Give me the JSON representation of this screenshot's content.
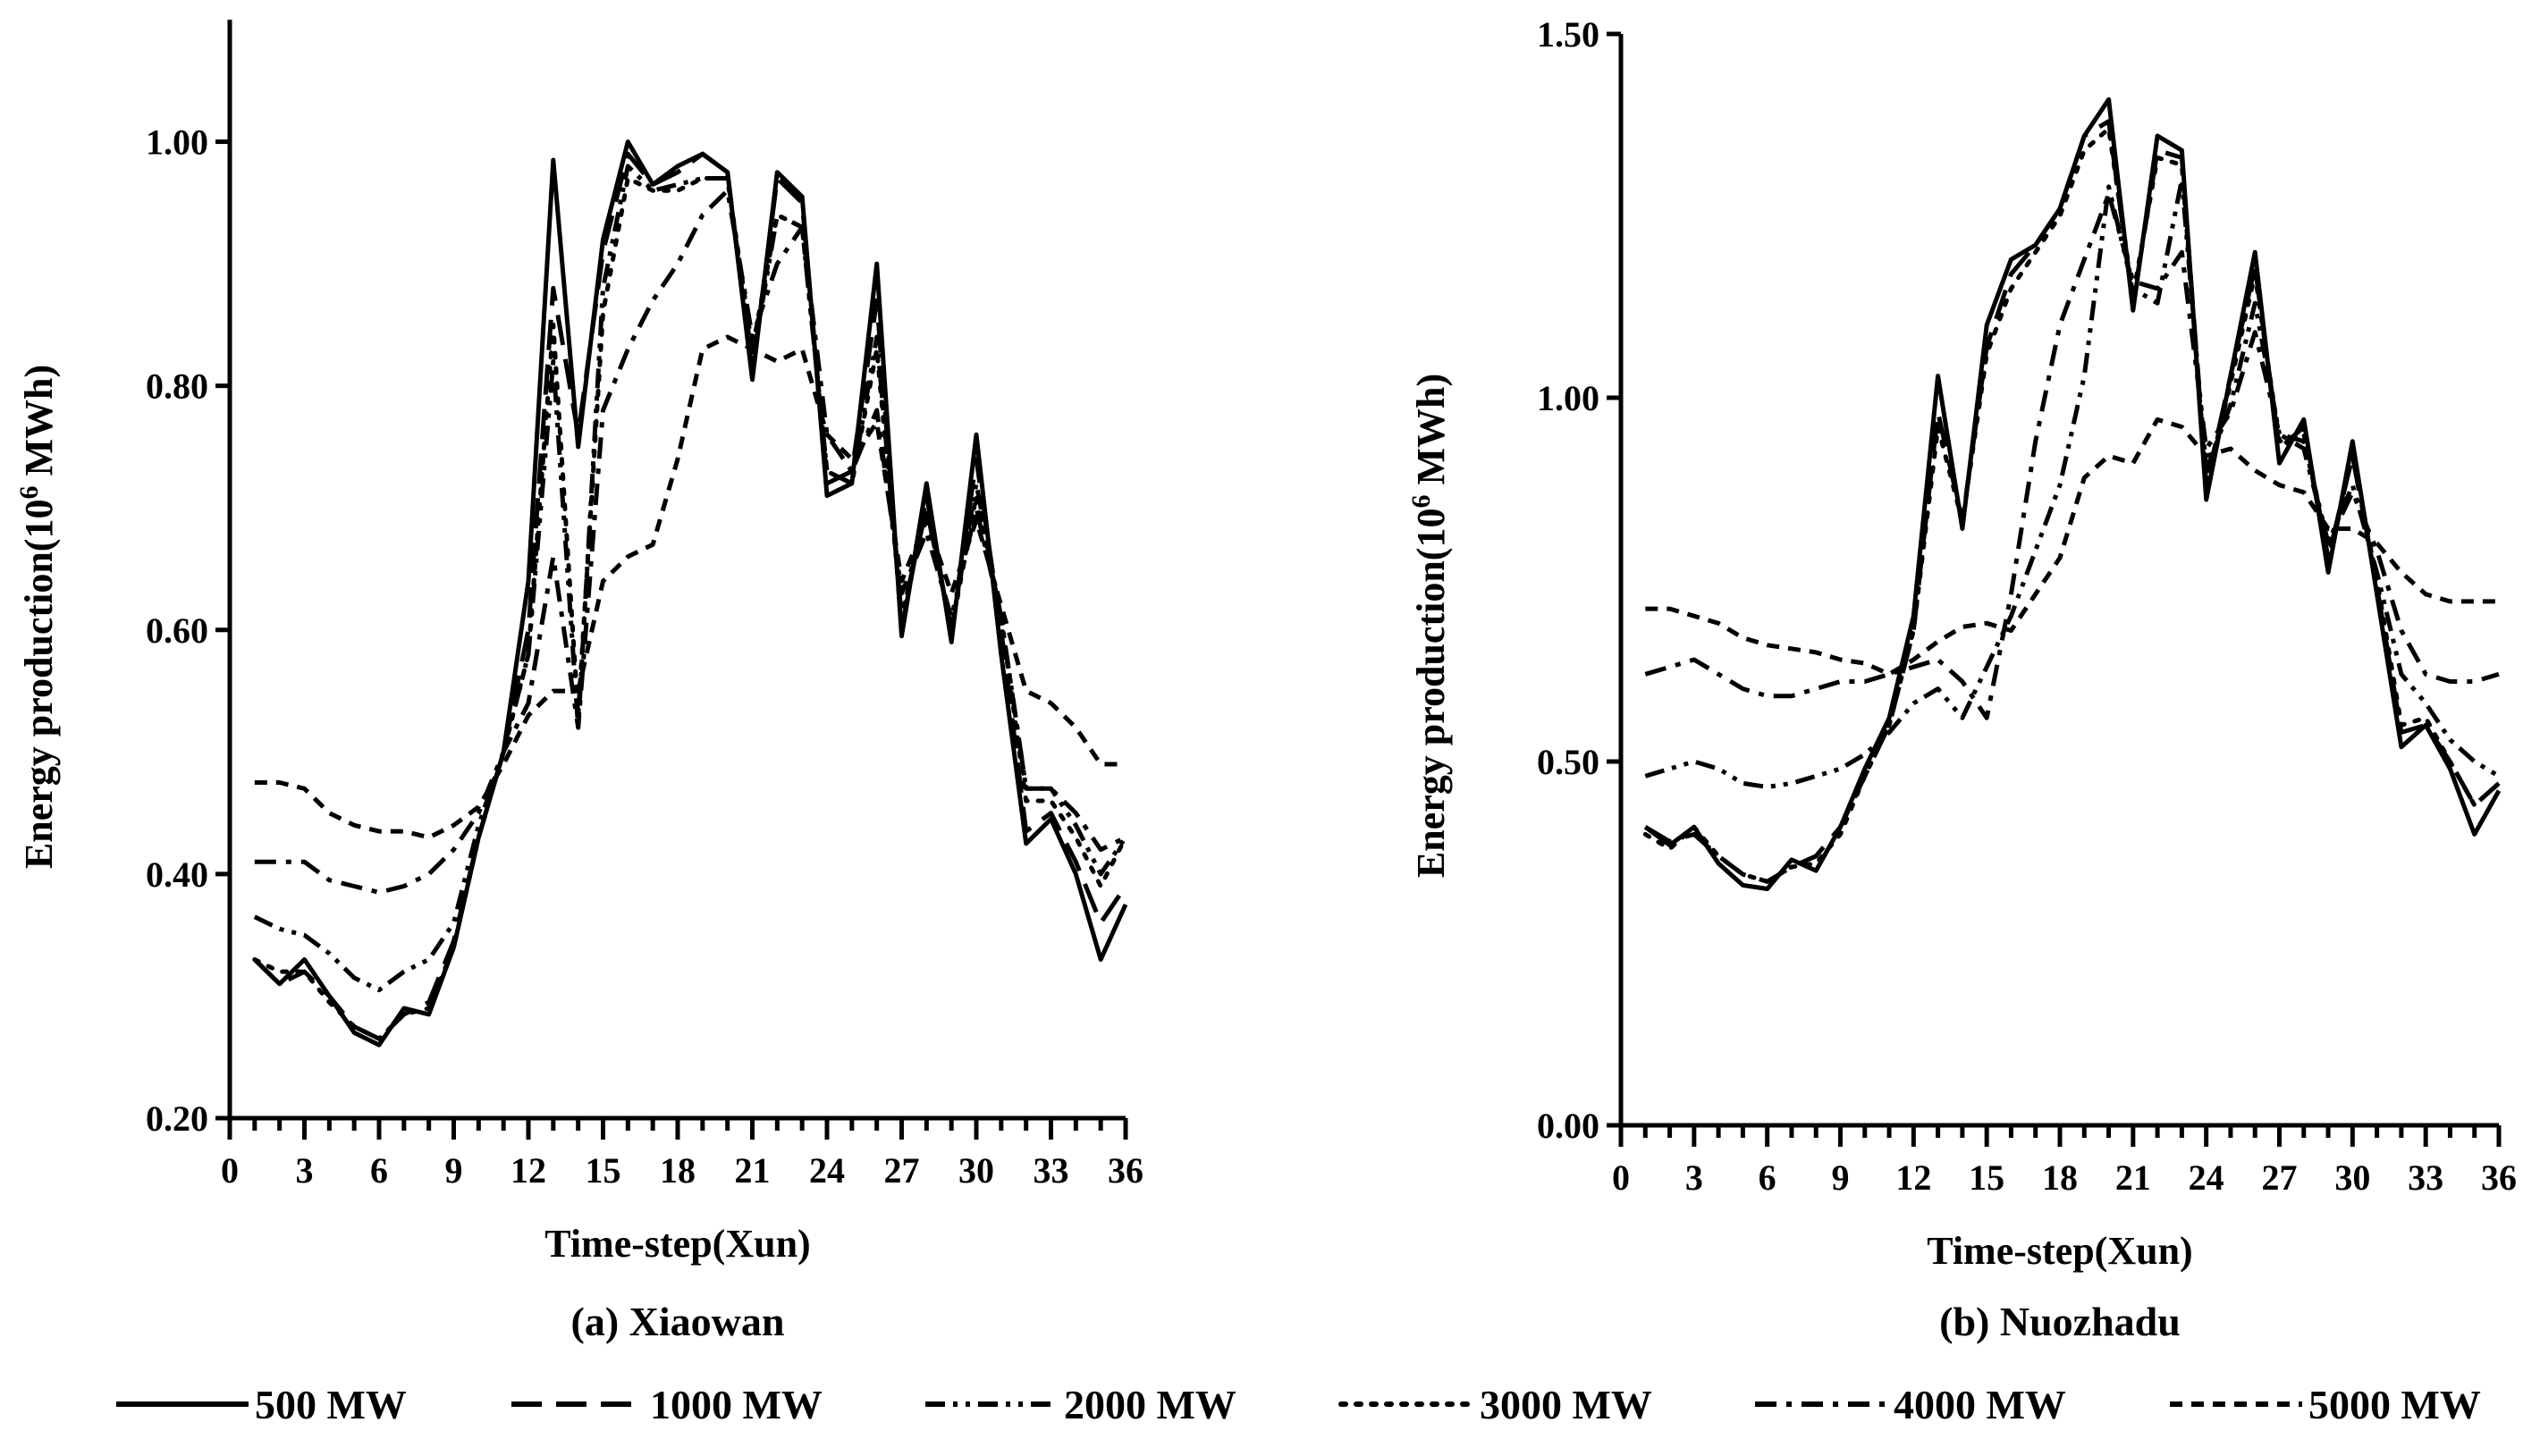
{
  "figure": {
    "legend": [
      {
        "label": "500 MW",
        "style": "solid"
      },
      {
        "label": "1000 MW",
        "style": "longdash"
      },
      {
        "label": "2000 MW",
        "style": "dashdotdot"
      },
      {
        "label": "3000 MW",
        "style": "dotted"
      },
      {
        "label": "4000 MW",
        "style": "dashdot"
      },
      {
        "label": "5000 MW",
        "style": "shortdash"
      }
    ]
  },
  "chart_data": [
    {
      "type": "line",
      "caption": "(a) Xiaowan",
      "xlabel": "Time-step(Xun)",
      "ylabel_main": "Energy production(10",
      "ylabel_sup": "6",
      "ylabel_unit": " MWh)",
      "xlim": [
        0,
        36
      ],
      "ylim": [
        0.2,
        1.1
      ],
      "xticks": [
        0,
        3,
        6,
        9,
        12,
        15,
        18,
        21,
        24,
        27,
        30,
        33,
        36
      ],
      "yticks": [
        0.2,
        0.4,
        0.6,
        0.8,
        1.0
      ],
      "ytick_labels": [
        "0.20",
        "0.40",
        "0.60",
        "0.80",
        "1.00"
      ],
      "x": [
        1,
        2,
        3,
        4,
        5,
        6,
        7,
        8,
        9,
        10,
        11,
        12,
        13,
        14,
        15,
        16,
        17,
        18,
        19,
        20,
        21,
        22,
        23,
        24,
        25,
        26,
        27,
        28,
        29,
        30,
        31,
        32,
        33,
        34,
        35,
        36
      ],
      "series": [
        {
          "name": "500 MW",
          "style": "solid",
          "values": [
            0.33,
            0.31,
            0.33,
            0.3,
            0.27,
            0.26,
            0.29,
            0.285,
            0.34,
            0.43,
            0.5,
            0.64,
            0.985,
            0.75,
            0.92,
            1.0,
            0.965,
            0.98,
            0.99,
            0.975,
            0.805,
            0.975,
            0.955,
            0.71,
            0.72,
            0.9,
            0.595,
            0.72,
            0.59,
            0.76,
            0.58,
            0.425,
            0.445,
            0.4,
            0.33,
            0.375
          ]
        },
        {
          "name": "1000 MW",
          "style": "longdash",
          "values": [
            0.33,
            0.31,
            0.32,
            0.3,
            0.275,
            0.265,
            0.285,
            0.295,
            0.345,
            0.43,
            0.5,
            0.6,
            0.88,
            0.76,
            0.91,
            0.99,
            0.965,
            0.975,
            0.99,
            0.975,
            0.81,
            0.97,
            0.95,
            0.72,
            0.73,
            0.87,
            0.6,
            0.71,
            0.595,
            0.74,
            0.6,
            0.435,
            0.45,
            0.41,
            0.36,
            0.39
          ]
        },
        {
          "name": "2000 MW",
          "style": "dashdotdot",
          "values": [
            0.365,
            0.355,
            0.35,
            0.335,
            0.315,
            0.305,
            0.32,
            0.33,
            0.36,
            0.44,
            0.5,
            0.58,
            0.82,
            0.52,
            0.88,
            0.98,
            0.96,
            0.965,
            0.97,
            0.97,
            0.82,
            0.94,
            0.93,
            0.73,
            0.72,
            0.84,
            0.61,
            0.7,
            0.6,
            0.72,
            0.61,
            0.47,
            0.47,
            0.44,
            0.4,
            0.43
          ]
        },
        {
          "name": "3000 MW",
          "style": "dotted",
          "values": [
            0.33,
            0.32,
            0.32,
            0.295,
            0.275,
            0.265,
            0.285,
            0.29,
            0.34,
            0.43,
            0.5,
            0.58,
            0.85,
            0.53,
            0.86,
            0.97,
            0.96,
            0.96,
            0.97,
            0.97,
            0.83,
            0.94,
            0.93,
            0.73,
            0.72,
            0.83,
            0.61,
            0.7,
            0.6,
            0.71,
            0.61,
            0.46,
            0.46,
            0.43,
            0.39,
            0.43
          ]
        },
        {
          "name": "4000 MW",
          "style": "dashdot",
          "values": [
            0.41,
            0.41,
            0.41,
            0.395,
            0.39,
            0.385,
            0.39,
            0.4,
            0.42,
            0.45,
            0.5,
            0.54,
            0.66,
            0.52,
            0.78,
            0.83,
            0.87,
            0.9,
            0.94,
            0.96,
            0.84,
            0.9,
            0.93,
            0.76,
            0.73,
            0.78,
            0.63,
            0.68,
            0.61,
            0.7,
            0.61,
            0.47,
            0.47,
            0.45,
            0.42,
            0.43
          ]
        },
        {
          "name": "5000 MW",
          "style": "shortdash",
          "values": [
            0.475,
            0.475,
            0.47,
            0.45,
            0.44,
            0.435,
            0.435,
            0.43,
            0.44,
            0.455,
            0.49,
            0.53,
            0.55,
            0.55,
            0.64,
            0.66,
            0.67,
            0.74,
            0.83,
            0.84,
            0.83,
            0.82,
            0.83,
            0.76,
            0.74,
            0.77,
            0.64,
            0.69,
            0.63,
            0.69,
            0.62,
            0.55,
            0.54,
            0.52,
            0.49,
            0.49
          ]
        }
      ]
    },
    {
      "type": "line",
      "caption": "(b) Nuozhadu",
      "xlabel": "Time-step(Xun)",
      "ylabel_main": "Energy production(10",
      "ylabel_sup": "6",
      "ylabel_unit": " MWh)",
      "xlim": [
        0,
        36
      ],
      "ylim": [
        0.0,
        1.5
      ],
      "xticks": [
        0,
        3,
        6,
        9,
        12,
        15,
        18,
        21,
        24,
        27,
        30,
        33,
        36
      ],
      "yticks": [
        0.0,
        0.5,
        1.0,
        1.5
      ],
      "ytick_labels": [
        "0.00",
        "0.50",
        "1.00",
        "1.50"
      ],
      "x": [
        1,
        2,
        3,
        4,
        5,
        6,
        7,
        8,
        9,
        10,
        11,
        12,
        13,
        14,
        15,
        16,
        17,
        18,
        19,
        20,
        21,
        22,
        23,
        24,
        25,
        26,
        27,
        28,
        29,
        30,
        31,
        32,
        33,
        34,
        35,
        36
      ],
      "series": [
        {
          "name": "500 MW",
          "style": "solid",
          "values": [
            0.41,
            0.385,
            0.41,
            0.36,
            0.33,
            0.325,
            0.365,
            0.35,
            0.41,
            0.49,
            0.56,
            0.7,
            1.03,
            0.82,
            1.1,
            1.19,
            1.21,
            1.26,
            1.36,
            1.41,
            1.12,
            1.36,
            1.34,
            0.86,
            1.03,
            1.2,
            0.91,
            0.97,
            0.76,
            0.94,
            0.73,
            0.52,
            0.55,
            0.49,
            0.4,
            0.46
          ]
        },
        {
          "name": "1000 MW",
          "style": "longdash",
          "values": [
            0.41,
            0.39,
            0.4,
            0.37,
            0.345,
            0.335,
            0.355,
            0.37,
            0.41,
            0.48,
            0.55,
            0.68,
            0.98,
            0.83,
            1.07,
            1.17,
            1.21,
            1.26,
            1.36,
            1.38,
            1.13,
            1.34,
            1.33,
            0.88,
            1.03,
            1.18,
            0.93,
            0.96,
            0.78,
            0.92,
            0.74,
            0.54,
            0.55,
            0.5,
            0.44,
            0.47
          ]
        },
        {
          "name": "2000 MW",
          "style": "dashdotdot",
          "values": [
            0.48,
            0.49,
            0.5,
            0.49,
            0.47,
            0.465,
            0.47,
            0.48,
            0.49,
            0.51,
            0.54,
            0.58,
            0.6,
            0.56,
            0.63,
            0.7,
            0.79,
            0.88,
            1.03,
            1.29,
            1.15,
            1.13,
            1.3,
            0.9,
            0.99,
            1.13,
            0.95,
            0.94,
            0.8,
            0.88,
            0.76,
            0.62,
            0.58,
            0.53,
            0.5,
            0.48
          ]
        },
        {
          "name": "3000 MW",
          "style": "dotted",
          "values": [
            0.4,
            0.38,
            0.41,
            0.37,
            0.345,
            0.335,
            0.355,
            0.36,
            0.4,
            0.48,
            0.55,
            0.68,
            0.96,
            0.83,
            1.06,
            1.15,
            1.2,
            1.25,
            1.34,
            1.37,
            1.14,
            1.33,
            1.32,
            0.88,
            1.02,
            1.17,
            0.94,
            0.95,
            0.78,
            0.92,
            0.75,
            0.55,
            0.56,
            0.5,
            0.44,
            0.47
          ]
        },
        {
          "name": "4000 MW",
          "style": "dashdot",
          "values": [
            0.62,
            0.63,
            0.64,
            0.62,
            0.6,
            0.59,
            0.59,
            0.6,
            0.61,
            0.61,
            0.62,
            0.63,
            0.64,
            0.61,
            0.56,
            0.73,
            0.94,
            1.1,
            1.19,
            1.28,
            1.16,
            1.15,
            1.2,
            0.93,
            0.98,
            1.09,
            0.95,
            0.93,
            0.8,
            0.87,
            0.79,
            0.68,
            0.62,
            0.61,
            0.61,
            0.62
          ]
        },
        {
          "name": "5000 MW",
          "style": "shortdash",
          "values": [
            0.71,
            0.71,
            0.7,
            0.69,
            0.67,
            0.66,
            0.655,
            0.65,
            0.64,
            0.635,
            0.62,
            0.64,
            0.665,
            0.685,
            0.69,
            0.68,
            0.73,
            0.78,
            0.89,
            0.92,
            0.91,
            0.97,
            0.96,
            0.92,
            0.93,
            0.9,
            0.88,
            0.87,
            0.82,
            0.82,
            0.8,
            0.76,
            0.73,
            0.72,
            0.72,
            0.72
          ]
        }
      ]
    }
  ]
}
